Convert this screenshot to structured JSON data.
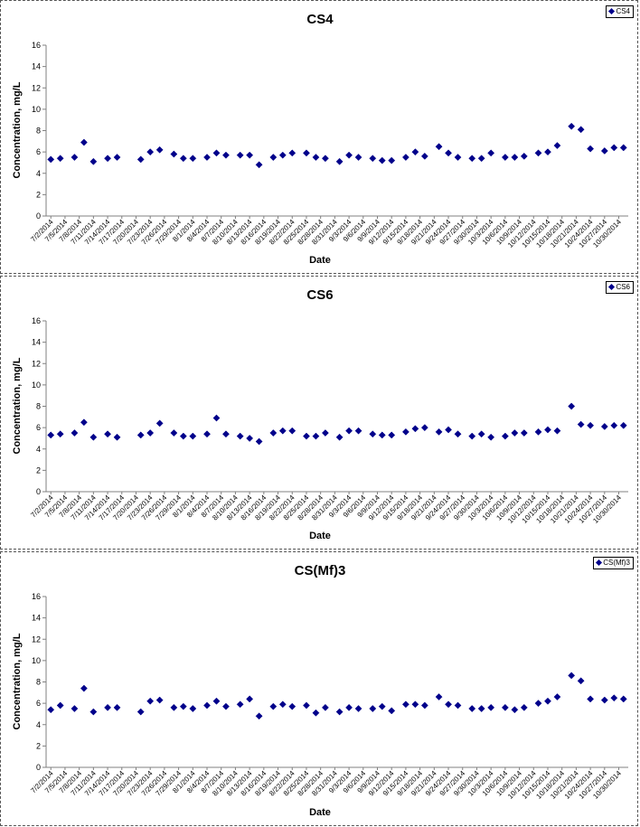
{
  "chart_data": [
    {
      "type": "scatter",
      "title": "CS4",
      "xlabel": "Date",
      "ylabel": "Concentration, mg/L",
      "ylim": [
        0,
        16
      ],
      "yticks": [
        0,
        2,
        4,
        6,
        8,
        10,
        12,
        14,
        16
      ],
      "xtick_labels": [
        "7/2/2014",
        "7/5/2014",
        "7/8/2014",
        "7/11/2014",
        "7/14/2014",
        "7/17/2014",
        "7/20/2014",
        "7/23/2014",
        "7/26/2014",
        "7/29/2014",
        "8/1/2014",
        "8/4/2014",
        "8/7/2014",
        "8/10/2014",
        "8/13/2014",
        "8/16/2014",
        "8/19/2014",
        "8/22/2014",
        "8/25/2014",
        "8/28/2014",
        "8/31/2014",
        "9/3/2014",
        "9/6/2014",
        "9/9/2014",
        "9/12/2014",
        "9/15/2014",
        "9/18/2014",
        "9/21/2014",
        "9/24/2014",
        "9/27/2014",
        "9/30/2014",
        "10/3/2014",
        "10/6/2014",
        "10/9/2014",
        "10/12/2014",
        "10/15/2014",
        "10/18/2014",
        "10/21/2014",
        "10/24/2014",
        "10/27/2014",
        "10/30/2014"
      ],
      "legend": "top-right",
      "grid": false,
      "series": [
        {
          "name": "CS4",
          "x": [
            "2014-07-02",
            "2014-07-04",
            "2014-07-07",
            "2014-07-09",
            "2014-07-11",
            "2014-07-14",
            "2014-07-16",
            "2014-07-21",
            "2014-07-23",
            "2014-07-25",
            "2014-07-28",
            "2014-07-30",
            "2014-08-01",
            "2014-08-04",
            "2014-08-06",
            "2014-08-08",
            "2014-08-11",
            "2014-08-13",
            "2014-08-15",
            "2014-08-18",
            "2014-08-20",
            "2014-08-22",
            "2014-08-25",
            "2014-08-27",
            "2014-08-29",
            "2014-09-01",
            "2014-09-03",
            "2014-09-05",
            "2014-09-08",
            "2014-09-10",
            "2014-09-12",
            "2014-09-15",
            "2014-09-17",
            "2014-09-19",
            "2014-09-22",
            "2014-09-24",
            "2014-09-26",
            "2014-09-29",
            "2014-10-01",
            "2014-10-03",
            "2014-10-06",
            "2014-10-08",
            "2014-10-10",
            "2014-10-13",
            "2014-10-15",
            "2014-10-17",
            "2014-10-20",
            "2014-10-22",
            "2014-10-24",
            "2014-10-27",
            "2014-10-29",
            "2014-10-31"
          ],
          "values": [
            5.3,
            5.4,
            5.5,
            6.9,
            5.1,
            5.4,
            5.5,
            5.3,
            6.0,
            6.2,
            5.8,
            5.4,
            5.4,
            5.5,
            5.9,
            5.7,
            5.7,
            5.7,
            4.8,
            5.5,
            5.7,
            5.9,
            5.9,
            5.5,
            5.4,
            5.1,
            5.7,
            5.5,
            5.4,
            5.2,
            5.2,
            5.5,
            6.0,
            5.6,
            6.5,
            5.9,
            5.5,
            5.4,
            5.4,
            5.9,
            5.5,
            5.5,
            5.6,
            5.9,
            6.0,
            6.6,
            8.4,
            8.1,
            6.3,
            6.1,
            6.4,
            6.4
          ]
        }
      ]
    },
    {
      "type": "scatter",
      "title": "CS6",
      "xlabel": "Date",
      "ylabel": "Concentration, mg/L",
      "ylim": [
        0,
        16
      ],
      "yticks": [
        0,
        2,
        4,
        6,
        8,
        10,
        12,
        14,
        16
      ],
      "xtick_labels": [
        "7/2/2014",
        "7/5/2014",
        "7/8/2014",
        "7/11/2014",
        "7/14/2014",
        "7/17/2014",
        "7/20/2014",
        "7/23/2014",
        "7/26/2014",
        "7/29/2014",
        "8/1/2014",
        "8/4/2014",
        "8/7/2014",
        "8/10/2014",
        "8/13/2014",
        "8/16/2014",
        "8/19/2014",
        "8/22/2014",
        "8/25/2014",
        "8/28/2014",
        "8/31/2014",
        "9/3/2014",
        "9/6/2014",
        "9/9/2014",
        "9/12/2014",
        "9/15/2014",
        "9/18/2014",
        "9/21/2014",
        "9/24/2014",
        "9/27/2014",
        "9/30/2014",
        "10/3/2014",
        "10/6/2014",
        "10/9/2014",
        "10/12/2014",
        "10/15/2014",
        "10/18/2014",
        "10/21/2014",
        "10/24/2014",
        "10/27/2014",
        "10/30/2014"
      ],
      "legend": "top-right",
      "grid": false,
      "series": [
        {
          "name": "CS6",
          "x": [
            "2014-07-02",
            "2014-07-04",
            "2014-07-07",
            "2014-07-09",
            "2014-07-11",
            "2014-07-14",
            "2014-07-16",
            "2014-07-21",
            "2014-07-23",
            "2014-07-25",
            "2014-07-28",
            "2014-07-30",
            "2014-08-01",
            "2014-08-04",
            "2014-08-06",
            "2014-08-08",
            "2014-08-11",
            "2014-08-13",
            "2014-08-15",
            "2014-08-18",
            "2014-08-20",
            "2014-08-22",
            "2014-08-25",
            "2014-08-27",
            "2014-08-29",
            "2014-09-01",
            "2014-09-03",
            "2014-09-05",
            "2014-09-08",
            "2014-09-10",
            "2014-09-12",
            "2014-09-15",
            "2014-09-17",
            "2014-09-19",
            "2014-09-22",
            "2014-09-24",
            "2014-09-26",
            "2014-09-29",
            "2014-10-01",
            "2014-10-03",
            "2014-10-06",
            "2014-10-08",
            "2014-10-10",
            "2014-10-13",
            "2014-10-15",
            "2014-10-17",
            "2014-10-20",
            "2014-10-22",
            "2014-10-24",
            "2014-10-27",
            "2014-10-29",
            "2014-10-31"
          ],
          "values": [
            5.3,
            5.4,
            5.5,
            6.5,
            5.1,
            5.4,
            5.1,
            5.3,
            5.5,
            6.4,
            5.5,
            5.2,
            5.2,
            5.4,
            6.9,
            5.4,
            5.2,
            5.0,
            4.7,
            5.5,
            5.7,
            5.7,
            5.2,
            5.2,
            5.5,
            5.1,
            5.7,
            5.7,
            5.4,
            5.3,
            5.3,
            5.6,
            5.9,
            6.0,
            5.6,
            5.8,
            5.4,
            5.2,
            5.4,
            5.1,
            5.2,
            5.5,
            5.5,
            5.6,
            5.8,
            5.7,
            8.0,
            6.3,
            6.2,
            6.1,
            6.2,
            6.2
          ]
        }
      ]
    },
    {
      "type": "scatter",
      "title": "CS(Mf)3",
      "xlabel": "Date",
      "ylabel": "Concentration, mg/L",
      "ylim": [
        0,
        16
      ],
      "yticks": [
        0,
        2,
        4,
        6,
        8,
        10,
        12,
        14,
        16
      ],
      "xtick_labels": [
        "7/2/2014",
        "7/5/2014",
        "7/8/2014",
        "7/11/2014",
        "7/14/2014",
        "7/17/2014",
        "7/20/2014",
        "7/23/2014",
        "7/26/2014",
        "7/29/2014",
        "8/1/2014",
        "8/4/2014",
        "8/7/2014",
        "8/10/2014",
        "8/13/2014",
        "8/16/2014",
        "8/19/2014",
        "8/22/2014",
        "8/25/2014",
        "8/28/2014",
        "8/31/2014",
        "9/3/2014",
        "9/6/2014",
        "9/9/2014",
        "9/12/2014",
        "9/15/2014",
        "9/18/2014",
        "9/21/2014",
        "9/24/2014",
        "9/27/2014",
        "9/30/2014",
        "10/3/2014",
        "10/6/2014",
        "10/9/2014",
        "10/12/2014",
        "10/15/2014",
        "10/18/2014",
        "10/21/2014",
        "10/24/2014",
        "10/27/2014",
        "10/30/2014"
      ],
      "legend": "top-right",
      "grid": false,
      "series": [
        {
          "name": "CS(Mf)3",
          "x": [
            "2014-07-02",
            "2014-07-04",
            "2014-07-07",
            "2014-07-09",
            "2014-07-11",
            "2014-07-14",
            "2014-07-16",
            "2014-07-21",
            "2014-07-23",
            "2014-07-25",
            "2014-07-28",
            "2014-07-30",
            "2014-08-01",
            "2014-08-04",
            "2014-08-06",
            "2014-08-08",
            "2014-08-11",
            "2014-08-13",
            "2014-08-15",
            "2014-08-18",
            "2014-08-20",
            "2014-08-22",
            "2014-08-25",
            "2014-08-27",
            "2014-08-29",
            "2014-09-01",
            "2014-09-03",
            "2014-09-05",
            "2014-09-08",
            "2014-09-10",
            "2014-09-12",
            "2014-09-15",
            "2014-09-17",
            "2014-09-19",
            "2014-09-22",
            "2014-09-24",
            "2014-09-26",
            "2014-09-29",
            "2014-10-01",
            "2014-10-03",
            "2014-10-06",
            "2014-10-08",
            "2014-10-10",
            "2014-10-13",
            "2014-10-15",
            "2014-10-17",
            "2014-10-20",
            "2014-10-22",
            "2014-10-24",
            "2014-10-27",
            "2014-10-29",
            "2014-10-31"
          ],
          "values": [
            5.4,
            5.8,
            5.5,
            7.4,
            5.2,
            5.6,
            5.6,
            5.2,
            6.2,
            6.3,
            5.6,
            5.7,
            5.5,
            5.8,
            6.2,
            5.7,
            5.9,
            6.4,
            4.8,
            5.7,
            5.9,
            5.7,
            5.8,
            5.1,
            5.6,
            5.2,
            5.6,
            5.5,
            5.5,
            5.7,
            5.3,
            5.9,
            5.9,
            5.8,
            6.6,
            5.9,
            5.8,
            5.5,
            5.5,
            5.6,
            5.6,
            5.4,
            5.6,
            6.0,
            6.2,
            6.6,
            8.6,
            8.1,
            6.4,
            6.3,
            6.5,
            6.4
          ]
        }
      ]
    }
  ],
  "colors": {
    "marker": "#00008b",
    "axis": "#808080",
    "text": "#000000"
  }
}
